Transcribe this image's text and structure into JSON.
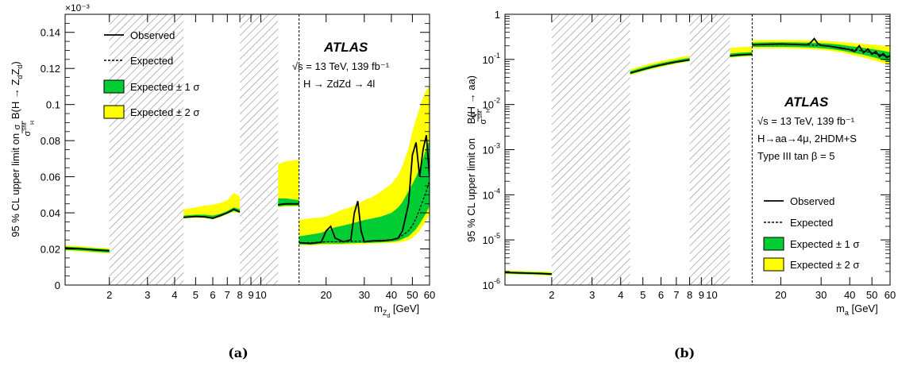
{
  "colors": {
    "green": "#00cc33",
    "yellow": "#ffff00",
    "hatch": "#888888",
    "line": "#000000"
  },
  "chart_data": [
    {
      "panel_label": "(a)",
      "type": "line",
      "xscale": "log",
      "yscale": "linear",
      "xlim": [
        1.25,
        60
      ],
      "ylim": [
        0,
        0.15
      ],
      "exponent_label": "×10⁻³",
      "xticks": [
        2,
        3,
        4,
        5,
        6,
        7,
        8,
        9,
        10,
        20,
        30,
        40,
        50,
        60
      ],
      "xtick_labels": [
        "2",
        "3",
        "4",
        "5",
        "6",
        "7",
        "8",
        "9",
        "10",
        "20",
        "30",
        "40",
        "50",
        "60"
      ],
      "yticks": [
        0,
        0.02,
        0.04,
        0.06,
        0.08,
        0.1,
        0.12,
        0.14
      ],
      "ytick_labels": [
        "0",
        "0.02",
        "0.04",
        "0.06",
        "0.08",
        "0.1",
        "0.12",
        "0.14"
      ],
      "xlabel": {
        "main": "m",
        "sub": "Z",
        "subsub": "d",
        "rest": " [GeV]"
      },
      "ylabel": {
        "lead": "95 % CL upper limit on ",
        "frac_num": "σ",
        "frac_den": "σ",
        "frac_den_sup": "SM",
        "frac_den_sub": "H",
        "tail": " B(H → Z",
        "sub1": "d",
        "mid": "Z",
        "sub2": "d",
        "close": ")"
      },
      "atlas": "ATLAS",
      "info_lines": [
        "√s = 13 TeV, 139 fb⁻¹",
        "H → ZdZd → 4l"
      ],
      "legend": [
        "Observed",
        "Expected",
        "Expected ± 1 σ",
        "Expected ± 2 σ"
      ],
      "legend_placement": "top-left",
      "hatched_regions": [
        [
          2.0,
          4.4
        ],
        [
          8.0,
          12.0
        ]
      ],
      "dashed_vline": 15,
      "segments": [
        {
          "x": [
            1.25,
            1.5,
            1.8,
            2.0
          ],
          "obs": [
            0.0205,
            0.02,
            0.0193,
            0.019
          ],
          "exp": [
            0.0205,
            0.02,
            0.0193,
            0.019
          ],
          "s1_lo": [
            0.0195,
            0.019,
            0.0183,
            0.018
          ],
          "s1_hi": [
            0.0213,
            0.0208,
            0.0201,
            0.0198
          ],
          "s2_lo": [
            0.019,
            0.0185,
            0.0178,
            0.0176
          ],
          "s2_hi": [
            0.022,
            0.0215,
            0.0207,
            0.0204
          ]
        },
        {
          "x": [
            4.4,
            5.0,
            5.5,
            6.0,
            6.5,
            7.0,
            7.5,
            8.0
          ],
          "obs": [
            0.0375,
            0.038,
            0.0378,
            0.037,
            0.0385,
            0.04,
            0.042,
            0.0405
          ],
          "exp": [
            0.0375,
            0.038,
            0.0378,
            0.0372,
            0.0385,
            0.04,
            0.0418,
            0.0405
          ],
          "s1_lo": [
            0.037,
            0.0375,
            0.0373,
            0.0367,
            0.0379,
            0.0395,
            0.041,
            0.04
          ],
          "s1_hi": [
            0.0385,
            0.039,
            0.039,
            0.0385,
            0.0395,
            0.041,
            0.043,
            0.042
          ],
          "s2_lo": [
            0.0368,
            0.0372,
            0.037,
            0.0364,
            0.0376,
            0.0392,
            0.0405,
            0.0397
          ],
          "s2_hi": [
            0.042,
            0.043,
            0.044,
            0.0445,
            0.0455,
            0.047,
            0.051,
            0.049
          ]
        },
        {
          "x": [
            12.0,
            13.0,
            14.0,
            15.0
          ],
          "obs": [
            0.0445,
            0.045,
            0.045,
            0.045
          ],
          "exp": [
            0.0445,
            0.045,
            0.045,
            0.045
          ],
          "s1_lo": [
            0.0435,
            0.044,
            0.044,
            0.044
          ],
          "s1_hi": [
            0.048,
            0.048,
            0.0475,
            0.047
          ],
          "s2_lo": [
            0.043,
            0.0435,
            0.0435,
            0.0435
          ],
          "s2_hi": [
            0.067,
            0.0685,
            0.069,
            0.0695
          ]
        },
        {
          "x": [
            15.0,
            17.0,
            19.0,
            20.0,
            21.0,
            22.0,
            24.0,
            26.0,
            27.0,
            28.0,
            29.0,
            30.0,
            33.0,
            36.0,
            40.0,
            43.0,
            45.0,
            48.0,
            50.0,
            52.0,
            54.0,
            56.0,
            58.0,
            60.0
          ],
          "obs": [
            0.0235,
            0.023,
            0.0238,
            0.03,
            0.0325,
            0.026,
            0.024,
            0.025,
            0.04,
            0.0465,
            0.03,
            0.024,
            0.0245,
            0.0245,
            0.025,
            0.026,
            0.03,
            0.045,
            0.072,
            0.079,
            0.06,
            0.075,
            0.083,
            0.06
          ],
          "exp": [
            0.0235,
            0.0235,
            0.0238,
            0.024,
            0.024,
            0.024,
            0.024,
            0.0242,
            0.0242,
            0.0243,
            0.0243,
            0.0243,
            0.0245,
            0.0248,
            0.025,
            0.026,
            0.0275,
            0.03,
            0.033,
            0.037,
            0.042,
            0.047,
            0.052,
            0.058
          ],
          "s1_lo": [
            0.0225,
            0.0225,
            0.0228,
            0.023,
            0.023,
            0.023,
            0.023,
            0.0232,
            0.0232,
            0.0233,
            0.0233,
            0.0233,
            0.0235,
            0.0237,
            0.024,
            0.0245,
            0.0255,
            0.027,
            0.029,
            0.031,
            0.034,
            0.037,
            0.04,
            0.044
          ],
          "s1_hi": [
            0.027,
            0.028,
            0.029,
            0.03,
            0.031,
            0.032,
            0.033,
            0.034,
            0.0345,
            0.035,
            0.0355,
            0.036,
            0.037,
            0.038,
            0.04,
            0.043,
            0.046,
            0.052,
            0.056,
            0.06,
            0.065,
            0.07,
            0.076,
            0.08
          ],
          "s2_lo": [
            0.022,
            0.022,
            0.0222,
            0.0224,
            0.0224,
            0.0224,
            0.0225,
            0.0226,
            0.0226,
            0.0227,
            0.0227,
            0.0227,
            0.0229,
            0.0231,
            0.0233,
            0.0236,
            0.024,
            0.025,
            0.026,
            0.028,
            0.03,
            0.033,
            0.036,
            0.039
          ],
          "s2_hi": [
            0.036,
            0.037,
            0.0375,
            0.038,
            0.039,
            0.04,
            0.042,
            0.043,
            0.044,
            0.045,
            0.046,
            0.047,
            0.049,
            0.052,
            0.056,
            0.061,
            0.066,
            0.076,
            0.085,
            0.092,
            0.098,
            0.104,
            0.108,
            0.11
          ]
        }
      ]
    },
    {
      "panel_label": "(b)",
      "type": "line",
      "xscale": "log",
      "yscale": "log",
      "xlim": [
        1.25,
        60
      ],
      "ylim": [
        1e-06,
        1
      ],
      "xticks": [
        2,
        3,
        4,
        5,
        6,
        7,
        8,
        9,
        10,
        20,
        30,
        40,
        50,
        60
      ],
      "xtick_labels": [
        "2",
        "3",
        "4",
        "5",
        "6",
        "7",
        "8",
        "9",
        "10",
        "20",
        "30",
        "40",
        "50",
        "60"
      ],
      "yticks": [
        1e-06,
        1e-05,
        0.0001,
        0.001,
        0.01,
        0.1,
        1
      ],
      "ytick_labels": [
        {
          "base": "10",
          "exp": "-6"
        },
        {
          "base": "10",
          "exp": "-5"
        },
        {
          "base": "10",
          "exp": "-4"
        },
        {
          "base": "10",
          "exp": "-3"
        },
        {
          "base": "10",
          "exp": "-2"
        },
        {
          "base": "10",
          "exp": "-1"
        },
        {
          "base": "1",
          "exp": ""
        }
      ],
      "xlabel": {
        "main": "m",
        "sub": "a",
        "rest": " [GeV]"
      },
      "ylabel": {
        "lead": "95 % CL upper limit on ",
        "frac_num": "σ",
        "frac_den": "σ",
        "frac_den_sup": "SM",
        "frac_den_sub": "H",
        "tail": " B(H → aa)"
      },
      "atlas": "ATLAS",
      "info_lines": [
        "√s = 13 TeV, 139 fb⁻¹",
        "H→aa→4μ, 2HDM+S",
        "Type III tan β = 5"
      ],
      "legend": [
        "Observed",
        "Expected",
        "Expected ± 1 σ",
        "Expected ± 2 σ"
      ],
      "legend_placement": "bottom-right",
      "hatched_regions": [
        [
          2.0,
          4.4
        ],
        [
          8.0,
          12.0
        ]
      ],
      "dashed_vline": 15,
      "segments": [
        {
          "x": [
            1.25,
            1.5,
            1.8,
            2.0
          ],
          "obs": [
            1.9e-06,
            1.85e-06,
            1.8e-06,
            1.75e-06
          ],
          "exp": [
            1.9e-06,
            1.85e-06,
            1.8e-06,
            1.75e-06
          ],
          "s1_lo": [
            1.8e-06,
            1.75e-06,
            1.7e-06,
            1.65e-06
          ],
          "s1_hi": [
            2e-06,
            1.95e-06,
            1.9e-06,
            1.85e-06
          ],
          "s2_lo": [
            1.75e-06,
            1.7e-06,
            1.65e-06,
            1.6e-06
          ],
          "s2_hi": [
            2.1e-06,
            2.05e-06,
            2e-06,
            1.95e-06
          ]
        },
        {
          "x": [
            4.4,
            5.0,
            5.5,
            6.0,
            6.5,
            7.0,
            7.5,
            8.0
          ],
          "obs": [
            0.05,
            0.06,
            0.068,
            0.075,
            0.082,
            0.088,
            0.093,
            0.098
          ],
          "exp": [
            0.05,
            0.06,
            0.068,
            0.075,
            0.082,
            0.088,
            0.093,
            0.098
          ],
          "s1_lo": [
            0.047,
            0.056,
            0.064,
            0.071,
            0.077,
            0.083,
            0.088,
            0.093
          ],
          "s1_hi": [
            0.055,
            0.066,
            0.075,
            0.083,
            0.09,
            0.097,
            0.103,
            0.108
          ],
          "s2_lo": [
            0.045,
            0.054,
            0.061,
            0.068,
            0.074,
            0.08,
            0.085,
            0.09
          ],
          "s2_hi": [
            0.06,
            0.073,
            0.083,
            0.092,
            0.1,
            0.108,
            0.115,
            0.12
          ]
        },
        {
          "x": [
            12.0,
            13.0,
            14.0,
            15.0
          ],
          "obs": [
            0.12,
            0.125,
            0.128,
            0.13
          ],
          "exp": [
            0.12,
            0.125,
            0.128,
            0.13
          ],
          "s1_lo": [
            0.112,
            0.117,
            0.12,
            0.122
          ],
          "s1_hi": [
            0.135,
            0.14,
            0.143,
            0.145
          ],
          "s2_lo": [
            0.108,
            0.112,
            0.115,
            0.117
          ],
          "s2_hi": [
            0.18,
            0.185,
            0.19,
            0.195
          ]
        },
        {
          "x": [
            15.0,
            17.0,
            20.0,
            23.0,
            26.0,
            27.0,
            28.0,
            29.0,
            30.0,
            33.0,
            36.0,
            40.0,
            42.0,
            44.0,
            46.0,
            48.0,
            50.0,
            52.0,
            54.0,
            56.0,
            58.0,
            60.0
          ],
          "obs": [
            0.21,
            0.215,
            0.22,
            0.215,
            0.21,
            0.235,
            0.29,
            0.225,
            0.205,
            0.195,
            0.18,
            0.165,
            0.15,
            0.2,
            0.14,
            0.17,
            0.13,
            0.15,
            0.115,
            0.135,
            0.11,
            0.12
          ],
          "exp": [
            0.21,
            0.212,
            0.215,
            0.213,
            0.21,
            0.208,
            0.207,
            0.205,
            0.203,
            0.195,
            0.185,
            0.17,
            0.163,
            0.158,
            0.152,
            0.146,
            0.14,
            0.134,
            0.128,
            0.122,
            0.117,
            0.112
          ],
          "s1_lo": [
            0.19,
            0.19,
            0.19,
            0.188,
            0.185,
            0.183,
            0.182,
            0.18,
            0.178,
            0.17,
            0.16,
            0.145,
            0.138,
            0.132,
            0.126,
            0.12,
            0.114,
            0.108,
            0.102,
            0.097,
            0.092,
            0.088
          ],
          "s1_hi": [
            0.235,
            0.238,
            0.24,
            0.238,
            0.236,
            0.234,
            0.233,
            0.231,
            0.229,
            0.222,
            0.213,
            0.198,
            0.192,
            0.186,
            0.18,
            0.175,
            0.17,
            0.165,
            0.16,
            0.155,
            0.15,
            0.146
          ],
          "s2_lo": [
            0.175,
            0.175,
            0.175,
            0.173,
            0.17,
            0.168,
            0.167,
            0.165,
            0.163,
            0.155,
            0.145,
            0.13,
            0.122,
            0.116,
            0.11,
            0.104,
            0.098,
            0.093,
            0.088,
            0.083,
            0.079,
            0.075
          ],
          "s2_hi": [
            0.265,
            0.268,
            0.27,
            0.268,
            0.266,
            0.265,
            0.264,
            0.262,
            0.26,
            0.253,
            0.245,
            0.235,
            0.23,
            0.226,
            0.222,
            0.218,
            0.214,
            0.21,
            0.206,
            0.202,
            0.198,
            0.195
          ]
        }
      ]
    }
  ]
}
